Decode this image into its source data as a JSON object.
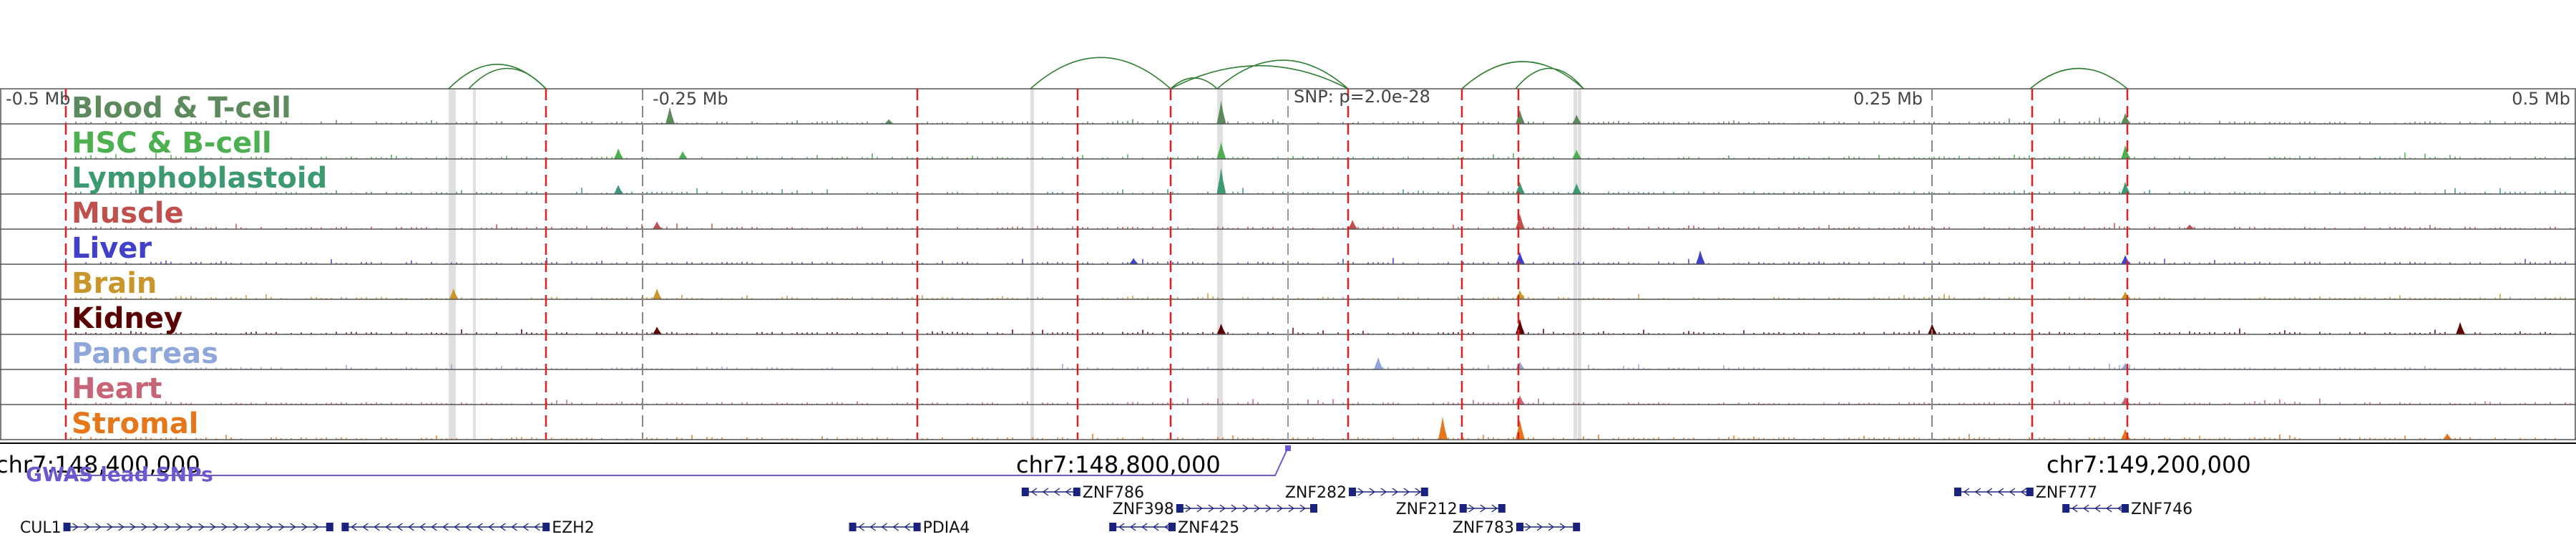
{
  "axis": {
    "left_label": "-0.5 Mb",
    "minus_quarter_label": "-0.25 Mb",
    "snp_label": "SNP: p=2.0e-28",
    "plus_quarter_label": "0.25 Mb",
    "right_label": "0.5 Mb"
  },
  "tracks": [
    {
      "name": "Blood & T-cell",
      "color": "#5c8a5c",
      "peaks": [
        [
          0.26,
          0.55
        ],
        [
          0.345,
          0.15
        ],
        [
          0.474,
          0.75
        ],
        [
          0.59,
          0.45
        ],
        [
          0.612,
          0.3
        ],
        [
          0.825,
          0.35
        ]
      ]
    },
    {
      "name": "HSC & B-cell",
      "color": "#4caf50",
      "peaks": [
        [
          0.24,
          0.35
        ],
        [
          0.265,
          0.25
        ],
        [
          0.474,
          0.55
        ],
        [
          0.612,
          0.3
        ],
        [
          0.825,
          0.45
        ]
      ]
    },
    {
      "name": "Lymphoblastoid",
      "color": "#3d9970",
      "peaks": [
        [
          0.24,
          0.3
        ],
        [
          0.474,
          0.85
        ],
        [
          0.59,
          0.4
        ],
        [
          0.612,
          0.35
        ],
        [
          0.825,
          0.4
        ]
      ]
    },
    {
      "name": "Muscle",
      "color": "#c0504d",
      "peaks": [
        [
          0.255,
          0.25
        ],
        [
          0.525,
          0.3
        ],
        [
          0.59,
          0.5
        ],
        [
          0.85,
          0.15
        ]
      ]
    },
    {
      "name": "Liver",
      "color": "#4040c8",
      "peaks": [
        [
          0.44,
          0.2
        ],
        [
          0.59,
          0.4
        ],
        [
          0.66,
          0.45
        ],
        [
          0.825,
          0.3
        ]
      ]
    },
    {
      "name": "Brain",
      "color": "#c8962b",
      "peaks": [
        [
          0.176,
          0.35
        ],
        [
          0.255,
          0.35
        ],
        [
          0.59,
          0.3
        ],
        [
          0.825,
          0.25
        ]
      ]
    },
    {
      "name": "Kidney",
      "color": "#5a0000",
      "peaks": [
        [
          0.255,
          0.25
        ],
        [
          0.474,
          0.35
        ],
        [
          0.59,
          0.5
        ],
        [
          0.75,
          0.35
        ],
        [
          0.955,
          0.4
        ]
      ]
    },
    {
      "name": "Pancreas",
      "color": "#8fa7d8",
      "peaks": [
        [
          0.535,
          0.4
        ],
        [
          0.59,
          0.25
        ],
        [
          0.825,
          0.2
        ]
      ]
    },
    {
      "name": "Heart",
      "color": "#c86478",
      "peaks": [
        [
          0.59,
          0.3
        ],
        [
          0.825,
          0.25
        ]
      ]
    },
    {
      "name": "Stromal",
      "color": "#e6761a",
      "peaks": [
        [
          0.56,
          0.75
        ],
        [
          0.59,
          0.65
        ],
        [
          0.825,
          0.35
        ],
        [
          0.95,
          0.2
        ]
      ]
    }
  ],
  "coordinates": {
    "left": "chr7:148,400,000",
    "mid": "chr7:148,800,000",
    "right": "chr7:149,200,000"
  },
  "gwas_label": "GWAS lead SNPs",
  "genes": [
    {
      "name": "CUL1",
      "start": 0.026,
      "end": 0.128,
      "strand": "+",
      "label_side": "left",
      "row": 2
    },
    {
      "name": "EZH2",
      "start": 0.134,
      "end": 0.212,
      "strand": "-",
      "label_side": "right",
      "row": 2
    },
    {
      "name": "PDIA4",
      "start": 0.331,
      "end": 0.356,
      "strand": "-",
      "label_side": "right",
      "row": 2
    },
    {
      "name": "ZNF786",
      "start": 0.398,
      "end": 0.418,
      "strand": "-",
      "label_side": "right",
      "row": 0
    },
    {
      "name": "ZNF398",
      "start": 0.458,
      "end": 0.51,
      "strand": "+",
      "label_side": "left",
      "row": 1
    },
    {
      "name": "ZNF425",
      "start": 0.432,
      "end": 0.455,
      "strand": "-",
      "label_side": "right",
      "row": 2
    },
    {
      "name": "ZNF282",
      "start": 0.525,
      "end": 0.553,
      "strand": "+",
      "label_side": "left",
      "row": 0
    },
    {
      "name": "ZNF212",
      "start": 0.568,
      "end": 0.583,
      "strand": "+",
      "label_side": "left",
      "row": 1
    },
    {
      "name": "ZNF783",
      "start": 0.59,
      "end": 0.612,
      "strand": "+",
      "label_side": "left",
      "row": 2
    },
    {
      "name": "ZNF777",
      "start": 0.76,
      "end": 0.788,
      "strand": "-",
      "label_side": "right",
      "row": 0
    },
    {
      "name": "ZNF746",
      "start": 0.802,
      "end": 0.825,
      "strand": "-",
      "label_side": "right",
      "row": 1
    }
  ]
}
